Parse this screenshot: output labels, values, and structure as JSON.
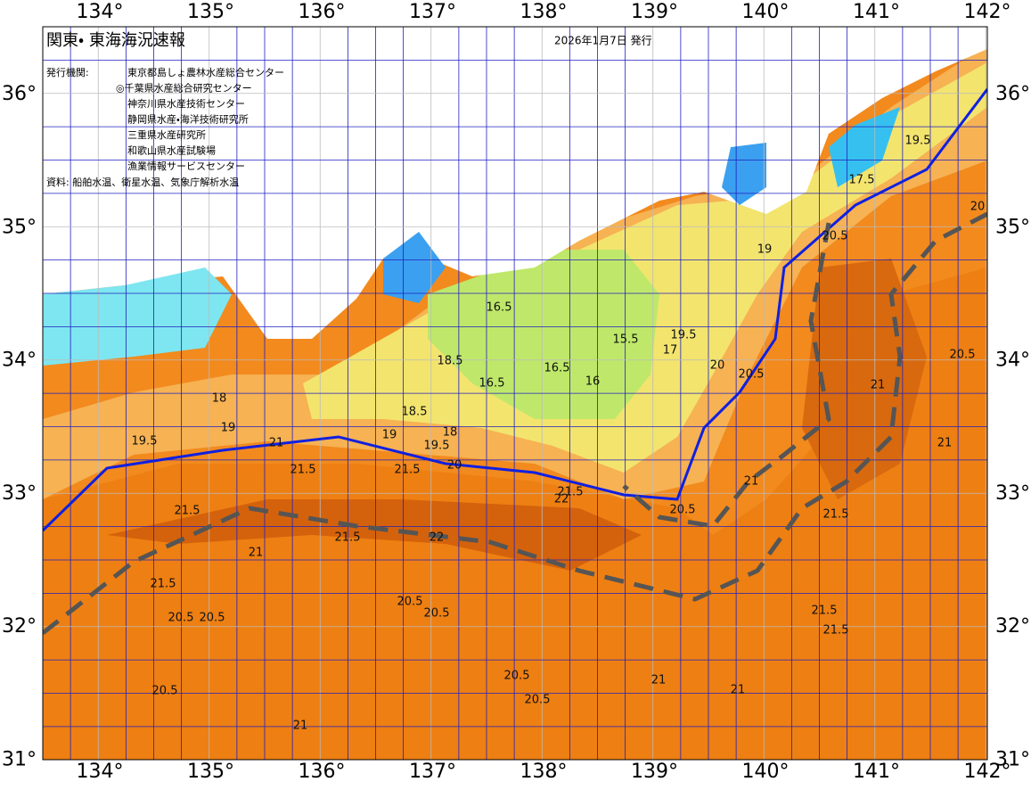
{
  "map": {
    "title": "関東・ 東海海況速報",
    "date": "2026年1月7日 発行",
    "agencies_label": "発行機関:",
    "agencies": [
      "東京都島しょ農林水産総合センター",
      "◎千葉県水産総合研究センター",
      "神奈川県水産技術センター",
      "静岡県水産・海洋技術研究所",
      "三重県水産研究所",
      "和歌山県水産試験場",
      "漁業情報サービスセンター"
    ],
    "source": "資料: 船舶水温、衛星水温、気象庁解析水温",
    "lon_labels": [
      "134°",
      "135°",
      "136°",
      "137°",
      "138°",
      "139°",
      "140°",
      "141°",
      "142°"
    ],
    "lat_labels": [
      "36°",
      "35°",
      "34°",
      "33°",
      "32°",
      "31°"
    ],
    "contour_labels": [
      "16.5",
      "16.5",
      "16.5",
      "16",
      "15.5",
      "17",
      "18.5",
      "18.5",
      "18",
      "19",
      "19.5",
      "20",
      "21.5",
      "21.5",
      "21",
      "19",
      "18",
      "19.5",
      "21.5",
      "21.5",
      "22",
      "22",
      "21.5",
      "20.5",
      "21",
      "20.5",
      "20",
      "19.5",
      "19",
      "20.5",
      "20",
      "19.5",
      "17.5",
      "21.5",
      "20.5",
      "21",
      "20.5",
      "20.5",
      "20.5",
      "20.5",
      "20.5",
      "21",
      "21.5",
      "21.5",
      "21",
      "20.5",
      "21",
      "21.5",
      "21",
      "20.5",
      "21"
    ]
  }
}
